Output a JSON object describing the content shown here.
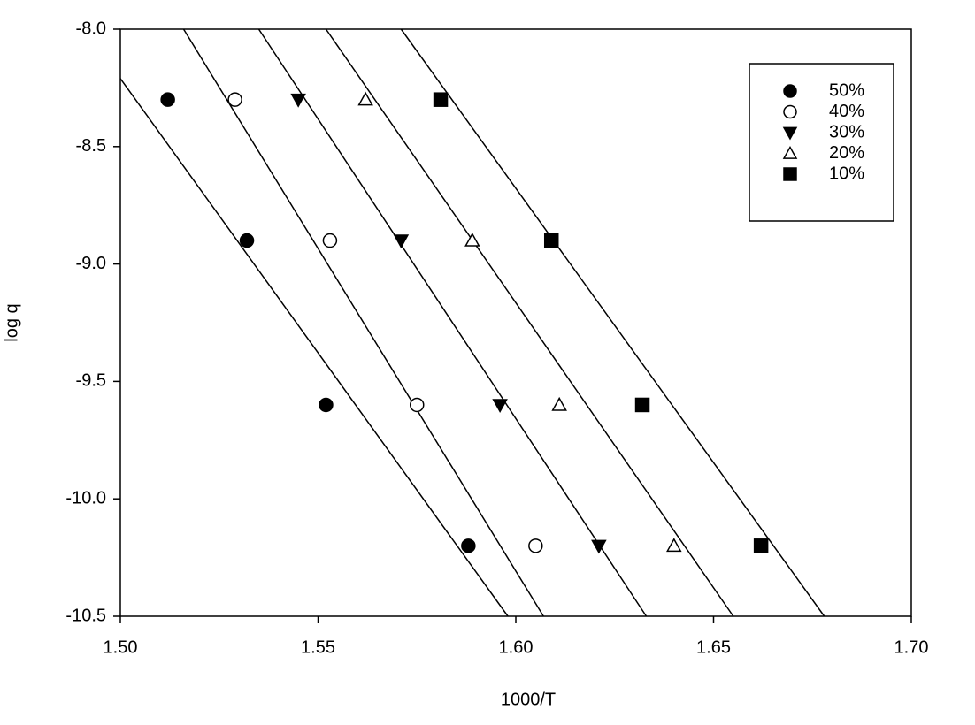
{
  "chart_data": {
    "type": "scatter",
    "x_label": "1000/T",
    "y_label": "log q",
    "xlim": [
      1.5,
      1.7
    ],
    "ylim": [
      -10.5,
      -8.0
    ],
    "xticks": [
      {
        "value": 1.5,
        "label": "1.50"
      },
      {
        "value": 1.55,
        "label": "1.55"
      },
      {
        "value": 1.6,
        "label": "1.60"
      },
      {
        "value": 1.65,
        "label": "1.65"
      },
      {
        "value": 1.7,
        "label": "1.70"
      }
    ],
    "yticks": [
      {
        "value": -8.0,
        "label": "-8.0"
      },
      {
        "value": -8.5,
        "label": "-8.5"
      },
      {
        "value": -9.0,
        "label": "-9.0"
      },
      {
        "value": -9.5,
        "label": "-9.5"
      },
      {
        "value": -10.0,
        "label": "-10.0"
      },
      {
        "value": -10.5,
        "label": "-10.5"
      }
    ],
    "legend": "upper right",
    "series": [
      {
        "name": "50%",
        "color": "#000000",
        "marker": "circle",
        "filled": true,
        "x": [
          1.512,
          1.532,
          1.552,
          1.588
        ],
        "y": [
          -8.3,
          -8.9,
          -9.6,
          -10.2
        ],
        "fit_x": [
          1.5,
          1.598
        ],
        "fit_y": [
          -8.21,
          -10.5
        ]
      },
      {
        "name": "40%",
        "color": "#000000",
        "marker": "circle",
        "filled": false,
        "x": [
          1.529,
          1.553,
          1.575,
          1.605
        ],
        "y": [
          -8.3,
          -8.9,
          -9.6,
          -10.2
        ],
        "fit_x": [
          1.516,
          1.607
        ],
        "fit_y": [
          -8.0,
          -10.5
        ]
      },
      {
        "name": "30%",
        "color": "#000000",
        "marker": "triangle-down",
        "filled": true,
        "x": [
          1.545,
          1.571,
          1.596,
          1.621
        ],
        "y": [
          -8.3,
          -8.9,
          -9.6,
          -10.2
        ],
        "fit_x": [
          1.535,
          1.633
        ],
        "fit_y": [
          -8.0,
          -10.5
        ]
      },
      {
        "name": "20%",
        "color": "#000000",
        "marker": "triangle-up",
        "filled": false,
        "x": [
          1.562,
          1.589,
          1.611,
          1.64
        ],
        "y": [
          -8.3,
          -8.9,
          -9.6,
          -10.2
        ],
        "fit_x": [
          1.552,
          1.655
        ],
        "fit_y": [
          -8.0,
          -10.5
        ]
      },
      {
        "name": "10%",
        "color": "#000000",
        "marker": "square",
        "filled": true,
        "x": [
          1.581,
          1.609,
          1.632,
          1.662
        ],
        "y": [
          -8.3,
          -8.9,
          -9.6,
          -10.2
        ],
        "fit_x": [
          1.571,
          1.678
        ],
        "fit_y": [
          -8.0,
          -10.5
        ]
      }
    ]
  }
}
